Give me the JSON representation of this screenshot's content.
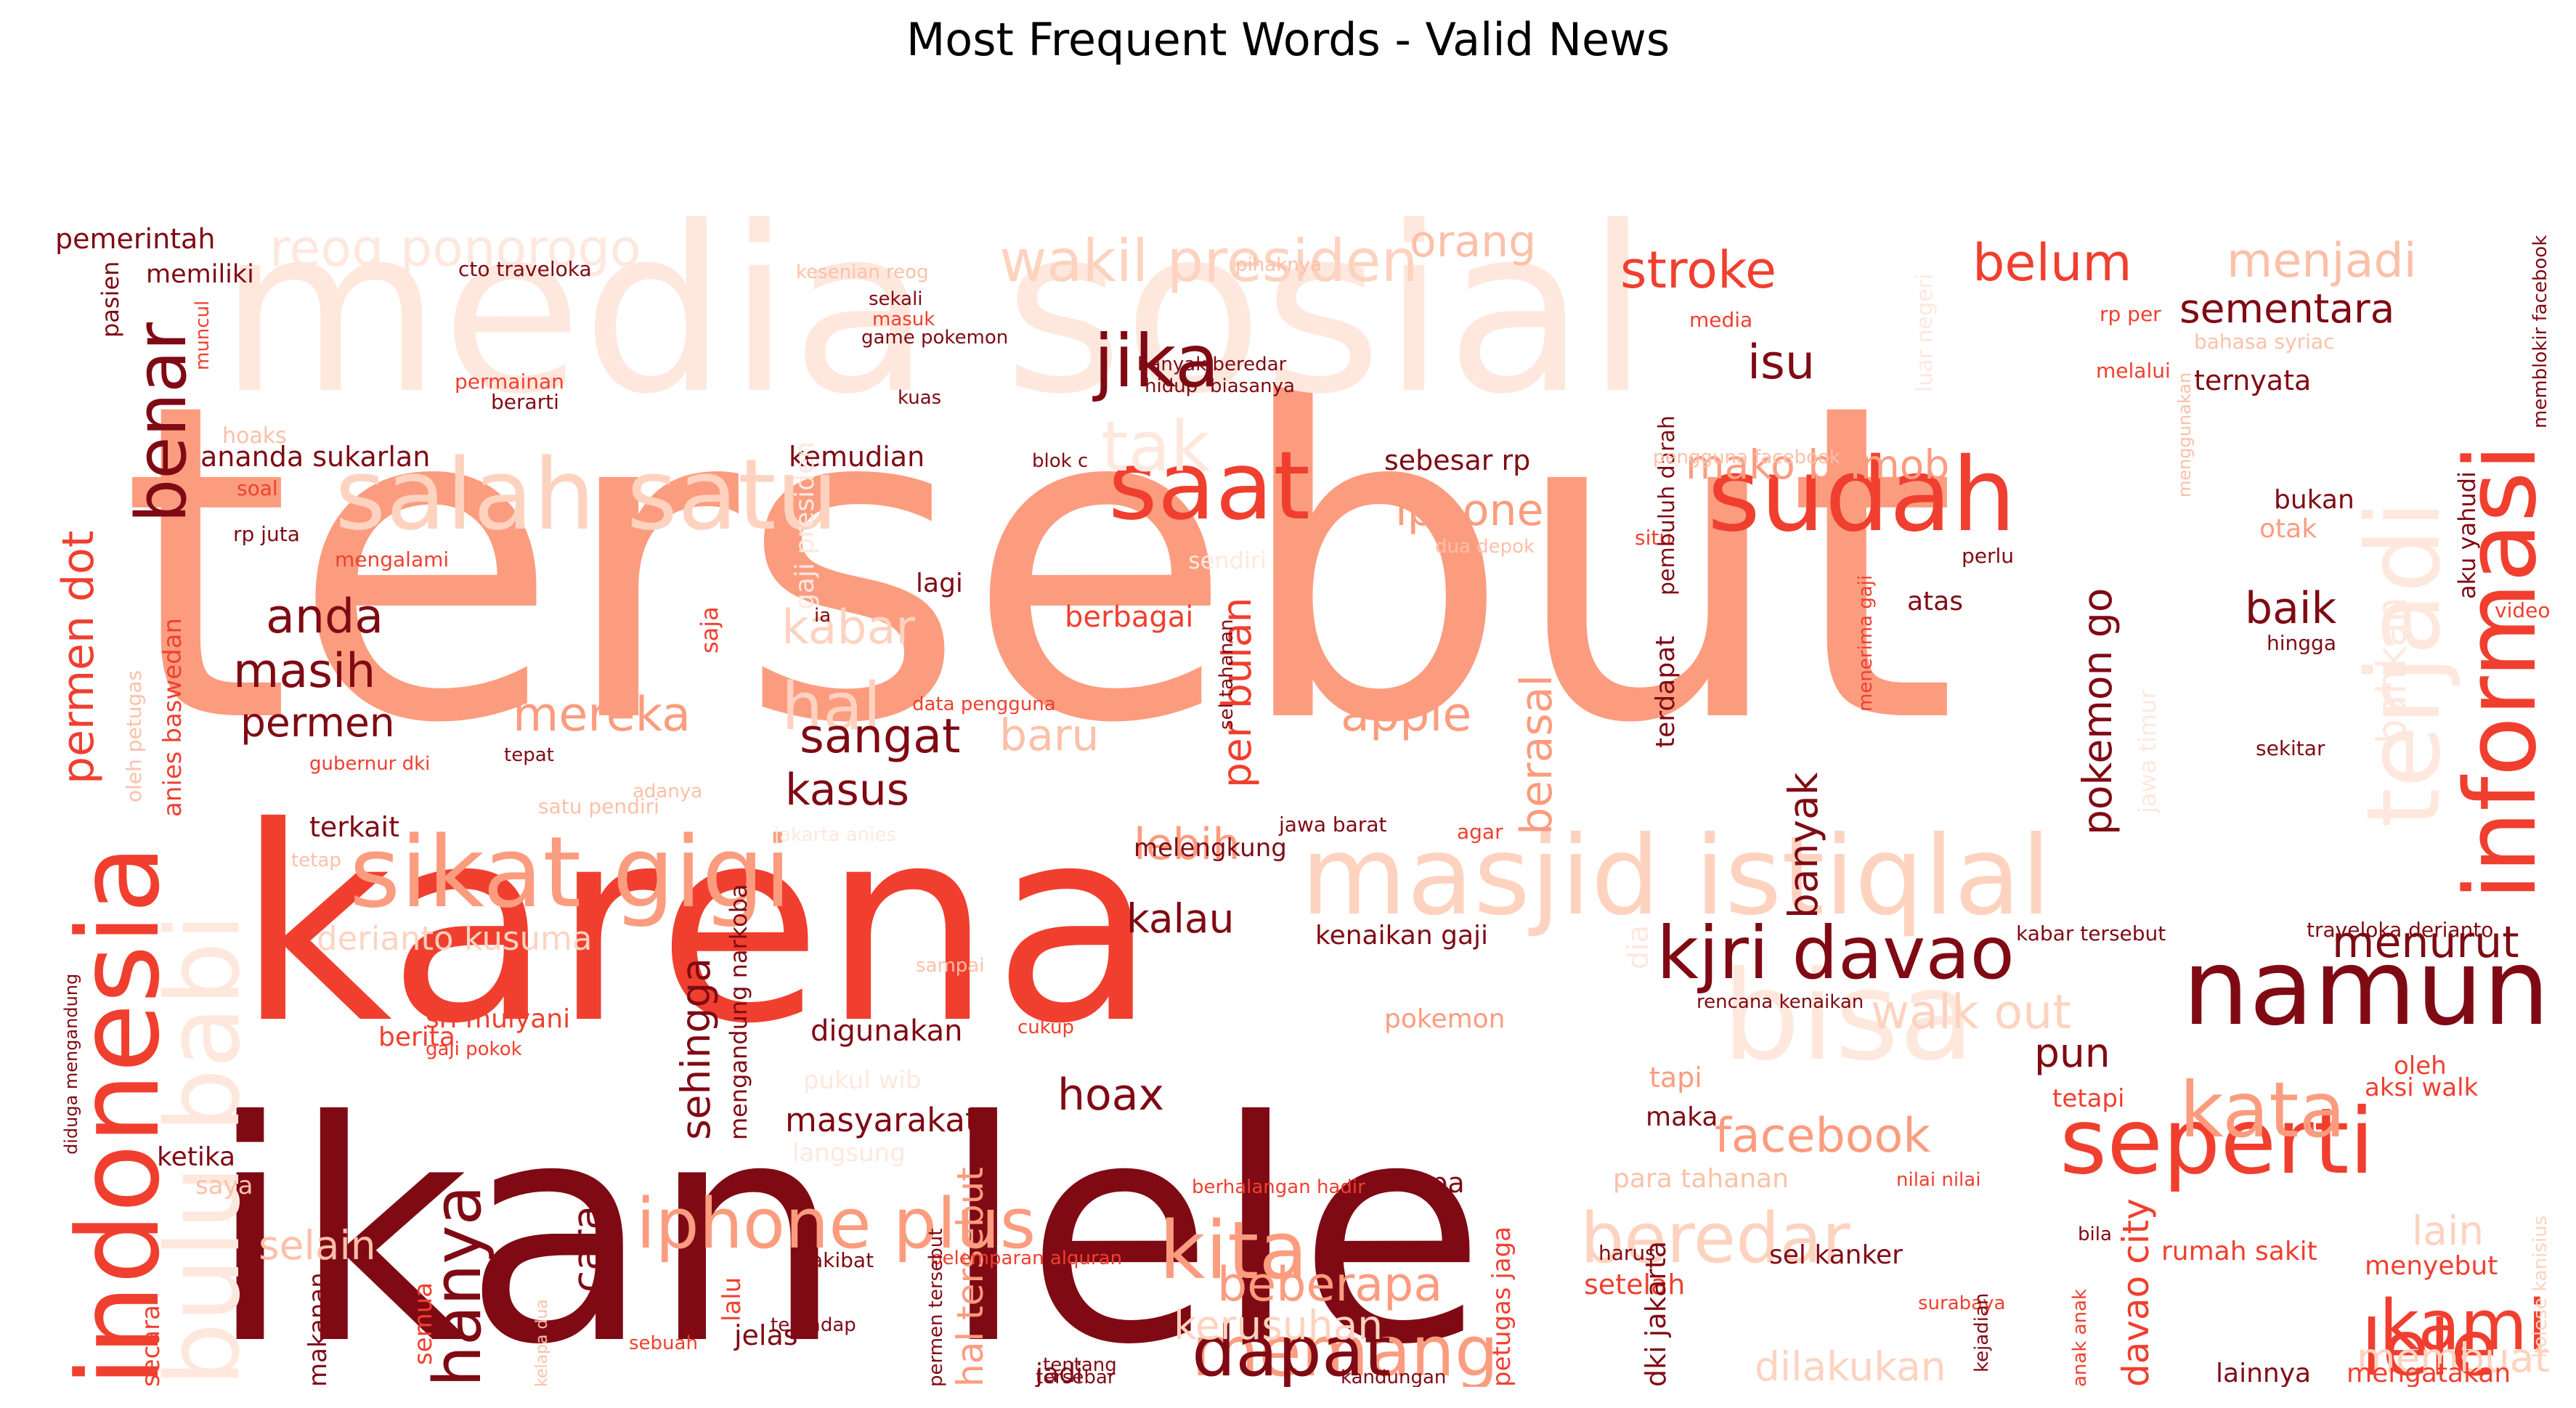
{
  "title": "Most Frequent Words - Valid News",
  "colors": {
    "dark": "#7f0a14",
    "red": "#f03f2f",
    "salmon": "#fc9c7f",
    "light": "#fdd3c0",
    "pale": "#fee8de",
    "pink": "#fcc0a8"
  },
  "words": [
    {
      "text": "tersebut",
      "color": "#fc9c7f"
    },
    {
      "text": "media sosial",
      "color": "#fee8de"
    },
    {
      "text": "karena",
      "color": "#f03f2f"
    },
    {
      "text": "ikan lele",
      "color": "#7f0a14"
    },
    {
      "text": "indonesia",
      "color": "#f03f2f"
    },
    {
      "text": "bulu babi",
      "color": "#fee8de"
    },
    {
      "text": "sikat gigi",
      "color": "#fc9c7f"
    },
    {
      "text": "masjid istiqlal",
      "color": "#fdd3c0"
    },
    {
      "text": "salah satu",
      "color": "#fdd3c0"
    },
    {
      "text": "saat",
      "color": "#f03f2f"
    },
    {
      "text": "sudah",
      "color": "#f03f2f"
    },
    {
      "text": "informasi",
      "color": "#f03f2f"
    },
    {
      "text": "terjadi",
      "color": "#fee8de"
    },
    {
      "text": "namun",
      "color": "#7f0a14"
    },
    {
      "text": "seperti",
      "color": "#f03f2f"
    },
    {
      "text": "bisa",
      "color": "#fee8de"
    },
    {
      "text": "kjri davao",
      "color": "#7f0a14"
    },
    {
      "text": "iphone plus",
      "color": "#fc9c7f"
    },
    {
      "text": "kita",
      "color": "#fc9c7f"
    },
    {
      "text": "beredar",
      "color": "#fdd3c0"
    },
    {
      "text": "kata",
      "color": "#fc9c7f"
    },
    {
      "text": "memang",
      "color": "#fc9c7f"
    },
    {
      "text": "dapat",
      "color": "#7f0a14"
    },
    {
      "text": "kami",
      "color": "#f03f2f"
    },
    {
      "text": "lele",
      "color": "#f03f2f"
    },
    {
      "text": "hanya",
      "color": "#7f0a14"
    },
    {
      "text": "benar",
      "color": "#7f0a14"
    },
    {
      "text": "jika",
      "color": "#7f0a14"
    },
    {
      "text": "tak",
      "color": "#fee8de"
    },
    {
      "text": "hal",
      "color": "#fdd3c0"
    },
    {
      "text": "wakil presiden",
      "color": "#fdd3c0"
    },
    {
      "text": "reog ponorogo",
      "color": "#fee8de"
    },
    {
      "text": "stroke",
      "color": "#f03f2f"
    },
    {
      "text": "belum",
      "color": "#f03f2f"
    },
    {
      "text": "menjadi",
      "color": "#fcc0a8"
    },
    {
      "text": "sementara",
      "color": "#7f0a14"
    },
    {
      "text": "isu",
      "color": "#7f0a14"
    },
    {
      "text": "iphone",
      "color": "#fc9c7f"
    },
    {
      "text": "mako brimob",
      "color": "#fc9c7f"
    },
    {
      "text": "anda",
      "color": "#7f0a14"
    },
    {
      "text": "masih",
      "color": "#7f0a14"
    },
    {
      "text": "permen",
      "color": "#7f0a14"
    },
    {
      "text": "permen dot",
      "color": "#f03f2f"
    },
    {
      "text": "kabar",
      "color": "#fdd3c0"
    },
    {
      "text": "sangat",
      "color": "#7f0a14"
    },
    {
      "text": "kasus",
      "color": "#7f0a14"
    },
    {
      "text": "mereka",
      "color": "#fc9c7f"
    },
    {
      "text": "apple",
      "color": "#fc9c7f"
    },
    {
      "text": "baru",
      "color": "#fcc0a8"
    },
    {
      "text": "per bulan",
      "color": "#f03f2f"
    },
    {
      "text": "berasal",
      "color": "#fc9c7f"
    },
    {
      "text": "pokemon go",
      "color": "#7f0a14"
    },
    {
      "text": "banyak",
      "color": "#7f0a14"
    },
    {
      "text": "baik",
      "color": "#7f0a14"
    },
    {
      "text": "lebih",
      "color": "#fc9c7f"
    },
    {
      "text": "kalau",
      "color": "#7f0a14"
    },
    {
      "text": "menurut",
      "color": "#7f0a14"
    },
    {
      "text": "walk out",
      "color": "#fdd3c0"
    },
    {
      "text": "pun",
      "color": "#7f0a14"
    },
    {
      "text": "hoax",
      "color": "#7f0a14"
    },
    {
      "text": "facebook",
      "color": "#fc9c7f"
    },
    {
      "text": "beberapa",
      "color": "#fc9c7f"
    },
    {
      "text": "kerusuhan",
      "color": "#fdd3c0"
    },
    {
      "text": "dilakukan",
      "color": "#fdd3c0"
    },
    {
      "text": "membuat",
      "color": "#fdd3c0"
    },
    {
      "text": "selain",
      "color": "#fcc0a8"
    },
    {
      "text": "cara",
      "color": "#7f0a14"
    },
    {
      "text": "sehingga",
      "color": "#7f0a14"
    },
    {
      "text": "masyarakat",
      "color": "#7f0a14"
    },
    {
      "text": "digunakan",
      "color": "#7f0a14"
    },
    {
      "text": "derianto kusuma",
      "color": "#fdd3c0"
    },
    {
      "text": "davao city",
      "color": "#f03f2f"
    },
    {
      "text": "hal tersebut",
      "color": "#fc9c7f"
    },
    {
      "text": "lain",
      "color": "#fdd3c0"
    },
    {
      "text": "pemerintah",
      "color": "#7f0a14"
    },
    {
      "text": "memiliki",
      "color": "#7f0a14"
    },
    {
      "text": "pasien",
      "color": "#7f0a14"
    },
    {
      "text": "ananda sukarlan",
      "color": "#7f0a14"
    },
    {
      "text": "kemudian",
      "color": "#7f0a14"
    },
    {
      "text": "sebesar rp",
      "color": "#7f0a14"
    },
    {
      "text": "ternyata",
      "color": "#7f0a14"
    },
    {
      "text": "bukan",
      "color": "#7f0a14"
    },
    {
      "text": "otak",
      "color": "#fc9c7f"
    },
    {
      "text": "atas",
      "color": "#7f0a14"
    },
    {
      "text": "terdapat",
      "color": "#7f0a14"
    },
    {
      "text": "terkait",
      "color": "#7f0a14"
    },
    {
      "text": "melengkung",
      "color": "#7f0a14"
    },
    {
      "text": "kenaikan gaji",
      "color": "#7f0a14"
    },
    {
      "text": "sri mulyani",
      "color": "#f03f2f"
    },
    {
      "text": "berita",
      "color": "#f03f2f"
    },
    {
      "text": "ketika",
      "color": "#7f0a14"
    },
    {
      "text": "pokemon",
      "color": "#fc9c7f"
    },
    {
      "text": "tapi",
      "color": "#fc9c7f"
    },
    {
      "text": "maka",
      "color": "#7f0a14"
    },
    {
      "text": "apa",
      "color": "#7f0a14"
    },
    {
      "text": "jelas",
      "color": "#7f0a14"
    },
    {
      "text": "setelah",
      "color": "#f03f2f"
    },
    {
      "text": "sel kanker",
      "color": "#7f0a14"
    },
    {
      "text": "rumah sakit",
      "color": "#f03f2f"
    },
    {
      "text": "menyebut",
      "color": "#f03f2f"
    },
    {
      "text": "lainnya",
      "color": "#7f0a14"
    },
    {
      "text": "mengatakan",
      "color": "#f03f2f"
    },
    {
      "text": "jadi",
      "color": "#7f0a14"
    },
    {
      "text": "orang",
      "color": "#fcc0a8"
    },
    {
      "text": "berbagai",
      "color": "#f03f2f"
    },
    {
      "text": "lagi",
      "color": "#7f0a14"
    },
    {
      "text": "tetapi",
      "color": "#f03f2f"
    },
    {
      "text": "oleh",
      "color": "#f03f2f"
    },
    {
      "text": "aksi walk",
      "color": "#f03f2f"
    },
    {
      "text": "saya",
      "color": "#fcc0a8"
    },
    {
      "text": "makanan",
      "color": "#7f0a14"
    },
    {
      "text": "semua",
      "color": "#f03f2f"
    },
    {
      "text": "secara",
      "color": "#f03f2f"
    },
    {
      "text": "petugas jaga",
      "color": "#f03f2f"
    },
    {
      "text": "dki jakarta",
      "color": "#7f0a14"
    },
    {
      "text": "lalu",
      "color": "#f03f2f"
    },
    {
      "text": "para tahanan",
      "color": "#fcc0a8"
    },
    {
      "text": "langsung",
      "color": "#fee8de"
    },
    {
      "text": "cto traveloka",
      "color": "#7f0a14"
    },
    {
      "text": "game pokemon",
      "color": "#7f0a14"
    },
    {
      "text": "sekali",
      "color": "#7f0a14"
    },
    {
      "text": "permainan",
      "color": "#f03f2f"
    },
    {
      "text": "berarti",
      "color": "#7f0a14"
    },
    {
      "text": "kuas",
      "color": "#7f0a14"
    },
    {
      "text": "banyak beredar",
      "color": "#7f0a14"
    },
    {
      "text": "hidup",
      "color": "#7f0a14"
    },
    {
      "text": "biasanya",
      "color": "#7f0a14"
    },
    {
      "text": "blok c",
      "color": "#7f0a14"
    },
    {
      "text": "rp juta",
      "color": "#7f0a14"
    },
    {
      "text": "mengalami",
      "color": "#f03f2f"
    },
    {
      "text": "soal",
      "color": "#f03f2f"
    },
    {
      "text": "ia",
      "color": "#7f0a14"
    },
    {
      "text": "data pengguna",
      "color": "#f03f2f"
    },
    {
      "text": "tepat",
      "color": "#7f0a14"
    },
    {
      "text": "jawa barat",
      "color": "#7f0a14"
    },
    {
      "text": "agar",
      "color": "#f03f2f"
    },
    {
      "text": "media",
      "color": "#f03f2f"
    },
    {
      "text": "melalui",
      "color": "#f03f2f"
    },
    {
      "text": "rp per",
      "color": "#f03f2f"
    },
    {
      "text": "perlu",
      "color": "#7f0a14"
    },
    {
      "text": "situ",
      "color": "#f03f2f"
    },
    {
      "text": "pembuluh darah",
      "color": "#7f0a14"
    },
    {
      "text": "hingga",
      "color": "#7f0a14"
    },
    {
      "text": "sekitar",
      "color": "#7f0a14"
    },
    {
      "text": "memblokir facebook",
      "color": "#7f0a14"
    },
    {
      "text": "aku yahudi",
      "color": "#7f0a14"
    },
    {
      "text": "video",
      "color": "#f03f2f"
    },
    {
      "text": "kabar tersebut",
      "color": "#7f0a14"
    },
    {
      "text": "traveloka derianto",
      "color": "#7f0a14"
    },
    {
      "text": "rencana kenaikan",
      "color": "#7f0a14"
    },
    {
      "text": "cukup",
      "color": "#f03f2f"
    },
    {
      "text": "berhalangan hadir",
      "color": "#f03f2f"
    },
    {
      "text": "nilai nilai",
      "color": "#f03f2f"
    },
    {
      "text": "harus",
      "color": "#7f0a14"
    },
    {
      "text": "akibat",
      "color": "#7f0a14"
    },
    {
      "text": "terhadap",
      "color": "#7f0a14"
    },
    {
      "text": "pelemparan alquran",
      "color": "#f03f2f"
    },
    {
      "text": "tentang",
      "color": "#7f0a14"
    },
    {
      "text": "tersebar",
      "color": "#7f0a14"
    },
    {
      "text": "sebuah",
      "color": "#f03f2f"
    },
    {
      "text": "kandungan",
      "color": "#7f0a14"
    },
    {
      "text": "surabaya",
      "color": "#f03f2f"
    },
    {
      "text": "bila",
      "color": "#7f0a14"
    },
    {
      "text": "anak anak",
      "color": "#f03f2f"
    },
    {
      "text": "kejadian",
      "color": "#7f0a14"
    },
    {
      "text": "kolese kanisius",
      "color": "#fdd3c0"
    },
    {
      "text": "permen tersebut",
      "color": "#7f0a14"
    },
    {
      "text": "sel tahanan",
      "color": "#7f0a14"
    },
    {
      "text": "menerima gaji",
      "color": "#f03f2f"
    },
    {
      "text": "diduga mengandung",
      "color": "#7f0a14"
    },
    {
      "text": "mengandung narkoba",
      "color": "#7f0a14"
    },
    {
      "text": "gaji pokok",
      "color": "#f03f2f"
    },
    {
      "text": "anies baswedan",
      "color": "#f03f2f"
    },
    {
      "text": "gubernur dki",
      "color": "#f03f2f"
    },
    {
      "text": "oleh petugas",
      "color": "#fcc0a8"
    },
    {
      "text": "saja",
      "color": "#f03f2f"
    },
    {
      "text": "hoaks",
      "color": "#fcc0a8"
    },
    {
      "text": "muncul",
      "color": "#f03f2f"
    },
    {
      "text": "kesenian reog",
      "color": "#fcc0a8"
    },
    {
      "text": "masuk",
      "color": "#f03f2f"
    },
    {
      "text": "pihaknya",
      "color": "#fcc0a8"
    },
    {
      "text": "bahasa syriac",
      "color": "#fcc0a8"
    },
    {
      "text": "luar negeri",
      "color": "#fee8de"
    },
    {
      "text": "menggunakan",
      "color": "#fcc0a8"
    },
    {
      "text": "pengguna facebook",
      "color": "#fcc0a8"
    },
    {
      "text": "sendiri",
      "color": "#fee8de"
    },
    {
      "text": "dua depok",
      "color": "#fcc0a8"
    },
    {
      "text": "bahkan",
      "color": "#fee8de"
    },
    {
      "text": "jawa timur",
      "color": "#fee8de"
    },
    {
      "text": "satu pendiri",
      "color": "#fcc0a8"
    },
    {
      "text": "jakarta anies",
      "color": "#fee8de"
    },
    {
      "text": "adanya",
      "color": "#fcc0a8"
    },
    {
      "text": "sampai",
      "color": "#fcc0a8"
    },
    {
      "text": "dia",
      "color": "#fee8de"
    },
    {
      "text": "pukul wib",
      "color": "#fee8de"
    },
    {
      "text": "gaji presiden",
      "color": "#fee8de"
    },
    {
      "text": "kelapa dua",
      "color": "#fcc0a8"
    },
    {
      "text": "tetap",
      "color": "#fcc0a8"
    }
  ]
}
